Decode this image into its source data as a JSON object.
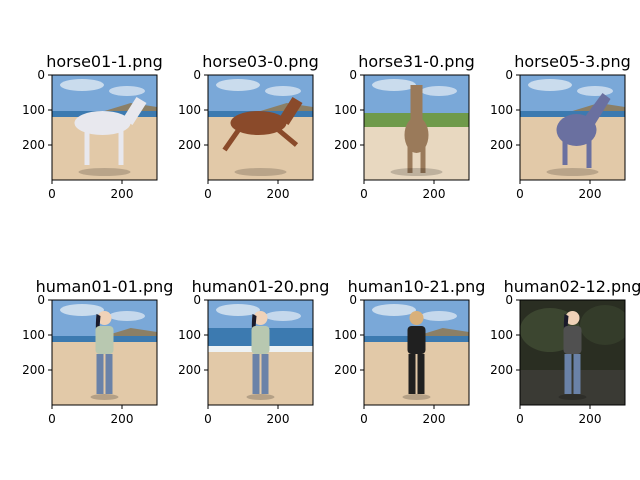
{
  "figure": {
    "panels": [
      {
        "title": "horse01-1.png",
        "scene": "beach",
        "subject": "horse",
        "subject_color": "#e8e8ee"
      },
      {
        "title": "horse03-0.png",
        "scene": "beach",
        "subject": "horse-gallop",
        "subject_color": "#8a4a2a"
      },
      {
        "title": "horse31-0.png",
        "scene": "grass-beach",
        "subject": "horse-front",
        "subject_color": "#9a7a5a"
      },
      {
        "title": "horse05-3.png",
        "scene": "beach",
        "subject": "horse-rear",
        "subject_color": "#6a70a0"
      },
      {
        "title": "human01-01.png",
        "scene": "beach",
        "subject": "woman",
        "subject_color": "#b8c8b0"
      },
      {
        "title": "human01-20.png",
        "scene": "sea-beach",
        "subject": "woman",
        "subject_color": "#b8c8b0"
      },
      {
        "title": "human10-21.png",
        "scene": "beach",
        "subject": "man-suit",
        "subject_color": "#202020"
      },
      {
        "title": "human02-12.png",
        "scene": "dark-forest",
        "subject": "woman-dark",
        "subject_color": "#505050"
      }
    ]
  },
  "chart_data": {
    "type": "image-grid",
    "rows": 2,
    "cols": 4,
    "x_ticks": [
      0,
      200
    ],
    "y_ticks": [
      0,
      100,
      200
    ],
    "xlim": [
      0,
      300
    ],
    "ylim": [
      300,
      0
    ]
  },
  "colors": {
    "sky": "#7aa8d8",
    "sea": "#3c7ab0",
    "sand": "#e2c9a8",
    "grass": "#6f9a4a",
    "forest": "#2a2e22"
  }
}
